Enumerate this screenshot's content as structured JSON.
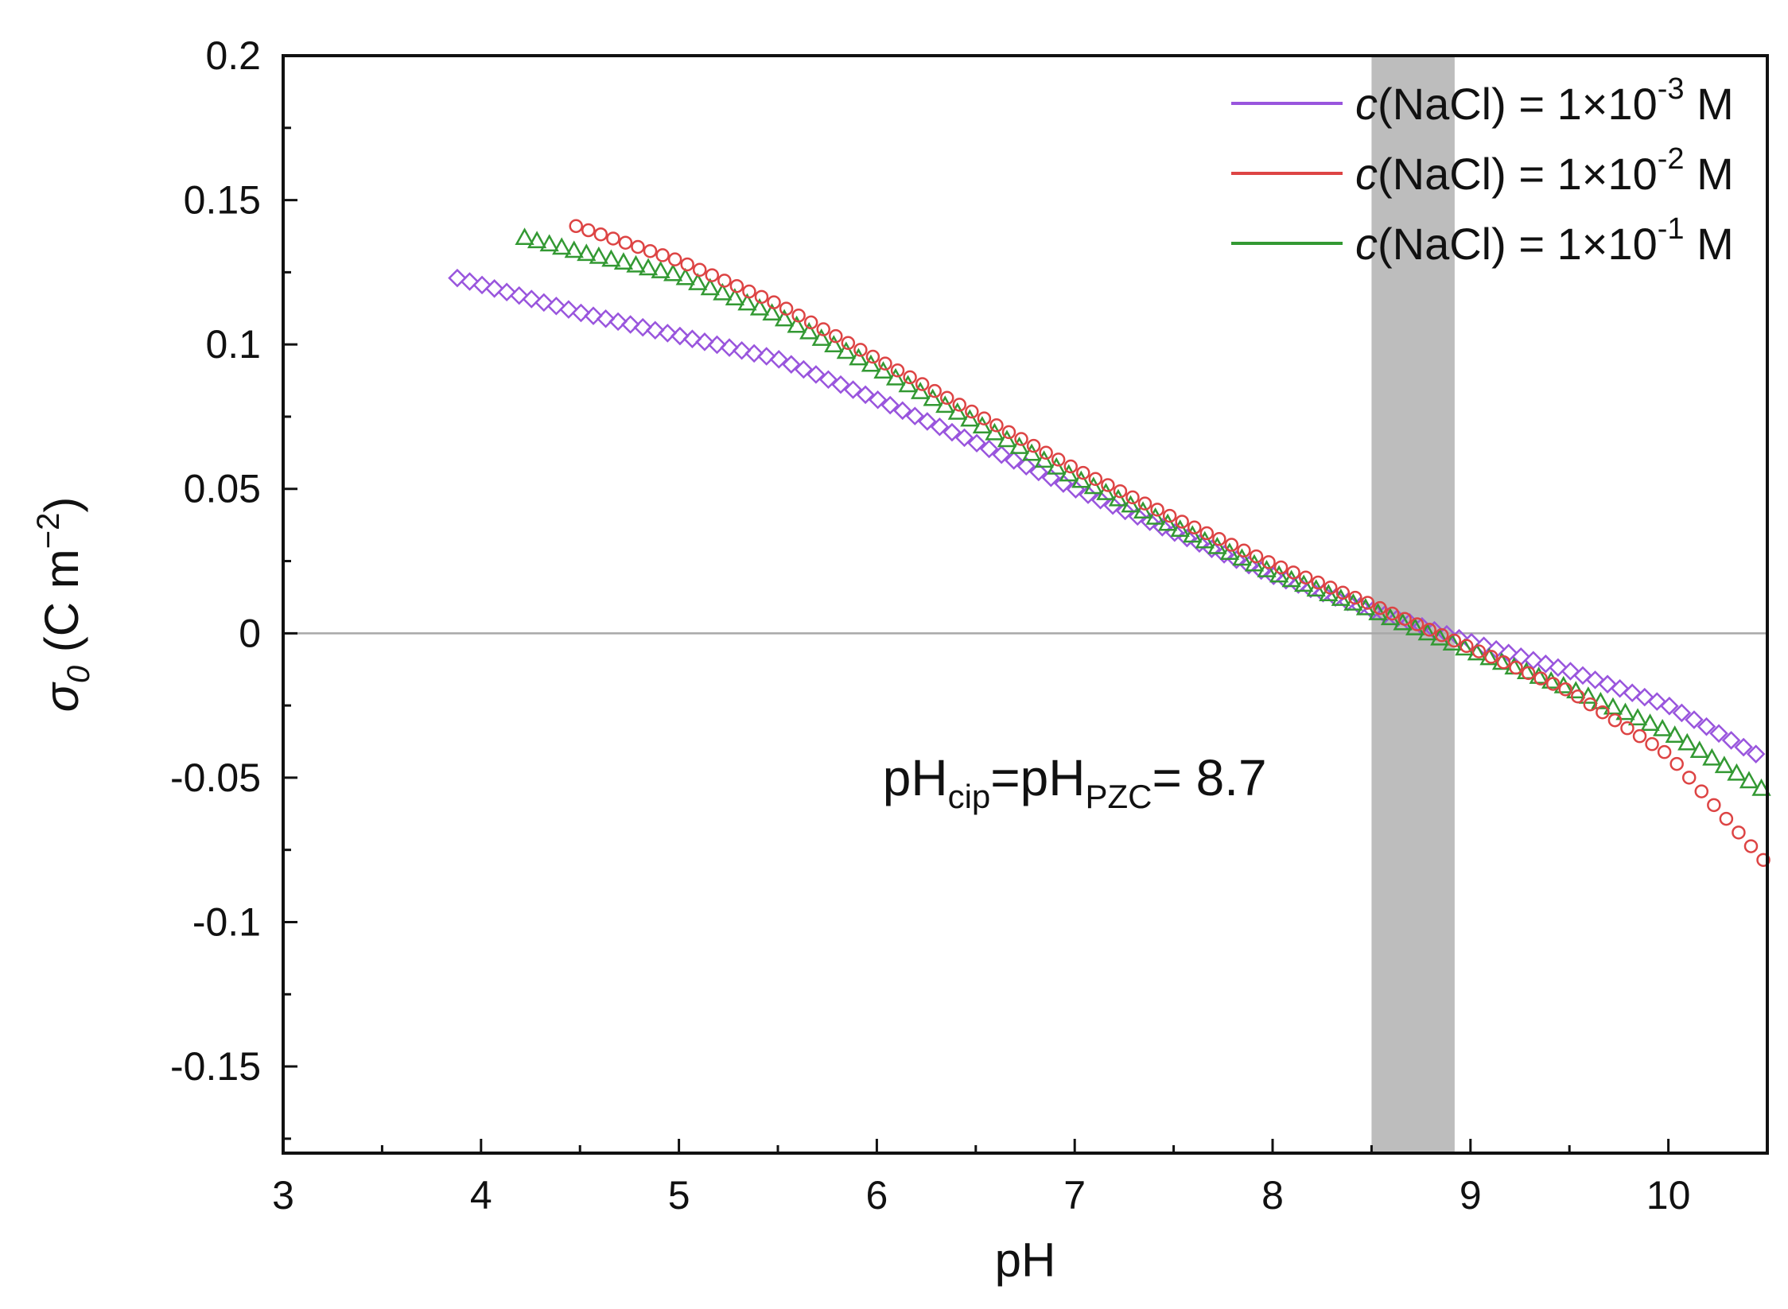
{
  "chart_data": {
    "type": "scatter",
    "title": "",
    "xlabel": "pH",
    "ylabel": "σ₀ (C m⁻²)",
    "ylabel_parts": {
      "symbol": "σ",
      "sub": "0",
      "unit": " (C m",
      "sup": "−2",
      "close": ")"
    },
    "xlim": [
      3,
      10.5
    ],
    "ylim": [
      -0.18,
      0.2
    ],
    "x_ticks": [
      3,
      4,
      5,
      6,
      7,
      8,
      9,
      10
    ],
    "x_tick_labels": [
      "3",
      "4",
      "5",
      "6",
      "7",
      "8",
      "9",
      "10"
    ],
    "y_ticks": [
      -0.15,
      -0.1,
      -0.05,
      0,
      0.05,
      0.1,
      0.15,
      0.2
    ],
    "y_tick_labels": [
      "-0.15",
      "-0.1",
      "-0.05",
      "0",
      "0.05",
      "0.1",
      "0.15",
      "0.2"
    ],
    "grid": false,
    "legend_position": "top-right",
    "zero_line": true,
    "shaded_band": {
      "x_range": [
        8.5,
        8.92
      ],
      "color": "#bdbdbd"
    },
    "annotation": {
      "base1": "pH",
      "sub1": "cip",
      "eq": "=pH",
      "sub2": "PZC",
      "value": "= 8.7",
      "at": [
        7.0,
        -0.05
      ]
    },
    "series": [
      {
        "name": "c(NaCl) = 1×10⁻³ M",
        "legend": {
          "italic": "c",
          "pre": "(NaCl) = 1×10",
          "sup": "-3",
          "post": " M"
        },
        "color": "#9955dd",
        "marker": "diamond",
        "x_start": 3.88,
        "x_end": 10.5,
        "anchors": [
          [
            3.88,
            0.123
          ],
          [
            4.5,
            0.111
          ],
          [
            5.0,
            0.103
          ],
          [
            5.5,
            0.095
          ],
          [
            6.0,
            0.081
          ],
          [
            6.5,
            0.066
          ],
          [
            7.0,
            0.05
          ],
          [
            7.5,
            0.035
          ],
          [
            8.0,
            0.02
          ],
          [
            8.5,
            0.008
          ],
          [
            9.0,
            -0.003
          ],
          [
            9.5,
            -0.013
          ],
          [
            10.0,
            -0.025
          ],
          [
            10.5,
            -0.044
          ]
        ]
      },
      {
        "name": "c(NaCl) = 1×10⁻² M",
        "legend": {
          "italic": "c",
          "pre": "(NaCl) = 1×10",
          "sup": "-2",
          "post": " M"
        },
        "color": "#dd4444",
        "marker": "circle",
        "x_start": 4.48,
        "x_end": 10.5,
        "anchors": [
          [
            4.48,
            0.141
          ],
          [
            5.0,
            0.129
          ],
          [
            5.5,
            0.114
          ],
          [
            6.0,
            0.095
          ],
          [
            6.5,
            0.076
          ],
          [
            7.0,
            0.057
          ],
          [
            7.5,
            0.04
          ],
          [
            8.0,
            0.024
          ],
          [
            8.5,
            0.01
          ],
          [
            9.0,
            -0.005
          ],
          [
            9.5,
            -0.02
          ],
          [
            10.0,
            -0.042
          ],
          [
            10.5,
            -0.08
          ]
        ]
      },
      {
        "name": "c(NaCl) = 1×10⁻¹ M",
        "legend": {
          "italic": "c",
          "pre": "(NaCl) = 1×10",
          "sup": "-1",
          "post": " M"
        },
        "color": "#339933",
        "marker": "triangle",
        "x_start": 4.22,
        "x_end": 10.5,
        "anchors": [
          [
            4.22,
            0.137
          ],
          [
            4.5,
            0.132
          ],
          [
            5.0,
            0.124
          ],
          [
            5.5,
            0.11
          ],
          [
            6.0,
            0.092
          ],
          [
            6.5,
            0.073
          ],
          [
            7.0,
            0.054
          ],
          [
            7.5,
            0.037
          ],
          [
            8.0,
            0.021
          ],
          [
            8.5,
            0.008
          ],
          [
            9.0,
            -0.006
          ],
          [
            9.5,
            -0.019
          ],
          [
            10.0,
            -0.034
          ],
          [
            10.5,
            -0.055
          ]
        ]
      }
    ],
    "step": 0.0625
  }
}
